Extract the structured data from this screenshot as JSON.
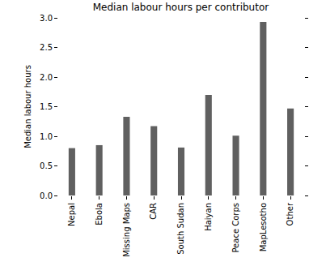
{
  "chart_data": {
    "type": "bar",
    "title": "Median labour hours per contributor",
    "y_label": "Median labour hours",
    "categories": [
      "Nepal",
      "Ebola",
      "Missing Maps",
      "CAR",
      "South Sudan",
      "Haiyan",
      "Peace Corps",
      "MapLesotho",
      "Other"
    ],
    "values": [
      0.8,
      0.85,
      1.33,
      1.17,
      0.81,
      1.7,
      1.01,
      2.93,
      1.47
    ],
    "color": "#606060",
    "ylim": [
      0,
      3
    ],
    "yticks": [
      {
        "value": 0,
        "label": "0.0"
      },
      0.5,
      {
        "value": 1,
        "label": "1.0"
      },
      1.5,
      {
        "value": 2,
        "label": "2.0"
      },
      2.5,
      {
        "value": 3,
        "label": "3.0"
      }
    ],
    "grid": false
  }
}
